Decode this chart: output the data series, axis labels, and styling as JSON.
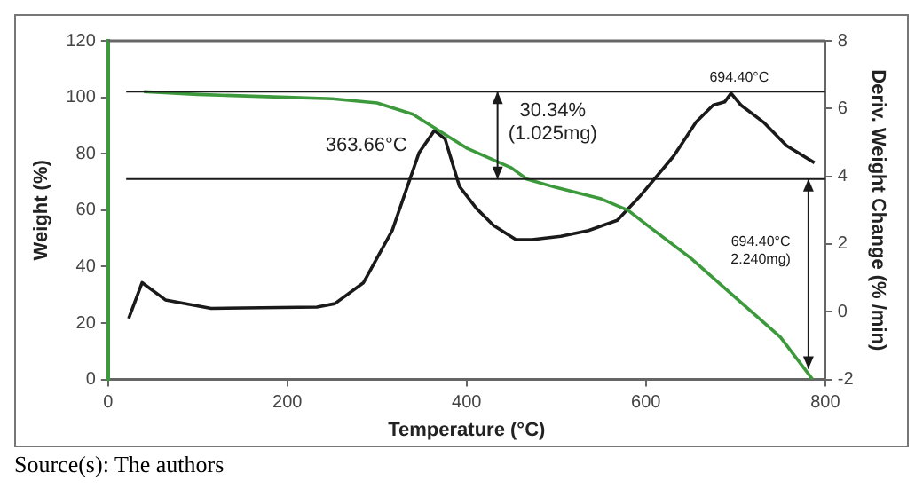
{
  "chart_data": {
    "type": "line",
    "xlabel": "Temperature (°C)",
    "ylabel": "Weight (%)",
    "y2label": "Deriv. Weight Change (% /min)",
    "xlim": [
      0,
      800
    ],
    "xticks": [
      0,
      200,
      400,
      600,
      800
    ],
    "ylim": [
      0,
      120
    ],
    "yticks": [
      0,
      20,
      40,
      60,
      80,
      100,
      120
    ],
    "y2lim": [
      -2,
      8
    ],
    "y2ticks": [
      -2,
      0,
      2,
      4,
      6,
      8
    ],
    "grid": false,
    "legend": false,
    "marker": "none",
    "line_style": "solid",
    "series": [
      {
        "color": "#3c9a3c",
        "x": [
          40,
          100,
          200,
          250,
          300,
          340,
          370,
          400,
          450,
          467,
          500,
          550,
          580,
          600,
          650,
          700,
          750,
          786
        ],
        "values": [
          102,
          101,
          100,
          99.5,
          98,
          94,
          88,
          82,
          75,
          71,
          68,
          64,
          60,
          55,
          43,
          29,
          15,
          0
        ]
      },
      {
        "color": "#1a1a1a",
        "axis": "y2",
        "x": [
          23,
          38,
          64,
          115,
          233,
          253,
          285,
          317,
          347,
          364,
          376,
          392,
          411,
          430,
          455,
          473,
          505,
          536,
          568,
          593,
          631,
          656,
          675,
          688,
          695,
          706,
          731,
          757,
          788
        ],
        "values": [
          -0.2,
          0.86,
          0.35,
          0.1,
          0.14,
          0.24,
          0.86,
          2.4,
          4.7,
          5.35,
          5.1,
          3.7,
          3.05,
          2.55,
          2.13,
          2.13,
          2.23,
          2.4,
          2.7,
          3.4,
          4.6,
          5.6,
          6.1,
          6.2,
          6.45,
          6.1,
          5.6,
          4.9,
          4.4
        ]
      }
    ],
    "ref_lines": [
      {
        "axis": "y",
        "value": 102,
        "color": "#1a1a1a"
      },
      {
        "axis": "y",
        "value": 71,
        "color": "#1a1a1a"
      }
    ],
    "annotations": [
      "363.66°C",
      "30.34%\n(1.025mg)",
      "694.40°C",
      "694.40°C\n2.240mg)",
      "Source(s): The authors"
    ]
  }
}
